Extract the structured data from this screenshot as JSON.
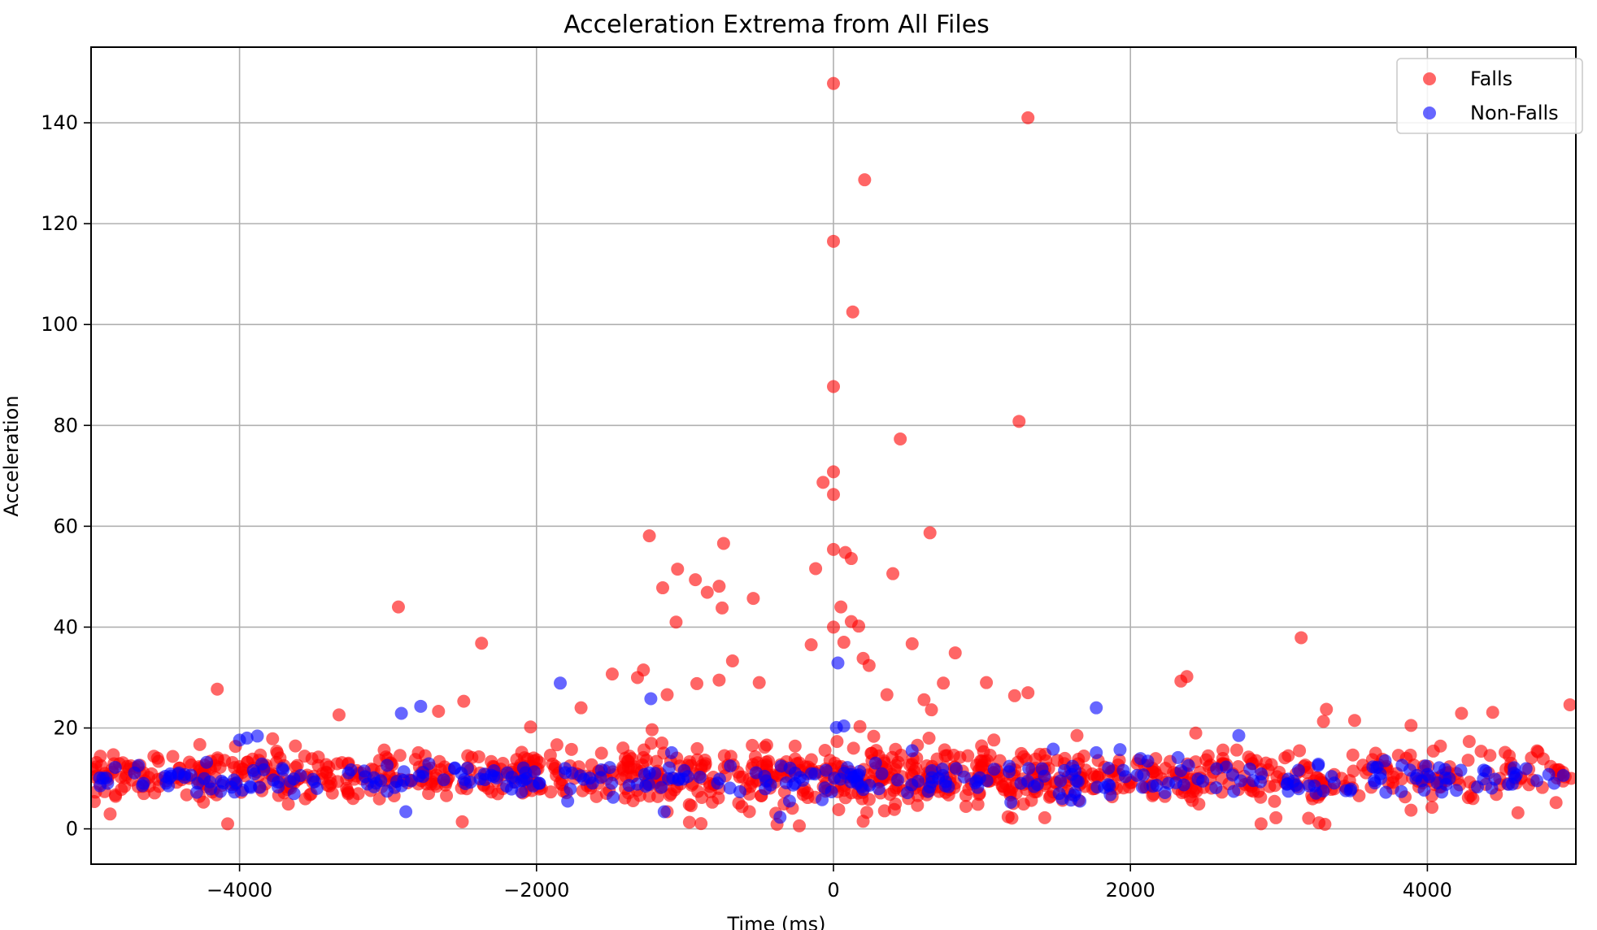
{
  "chart_data": {
    "type": "scatter",
    "title": "Acceleration Extrema from All Files",
    "xlabel": "Time (ms)",
    "ylabel": "Acceleration",
    "xlim": [
      -5000,
      5000
    ],
    "ylim": [
      -7,
      155
    ],
    "xticks": [
      -4000,
      -2000,
      0,
      2000,
      4000
    ],
    "xtick_labels": [
      "−4000",
      "−2000",
      "0",
      "2000",
      "4000"
    ],
    "yticks": [
      0,
      20,
      40,
      60,
      80,
      100,
      120,
      140
    ],
    "ytick_labels": [
      "0",
      "20",
      "40",
      "60",
      "80",
      "100",
      "120",
      "140"
    ],
    "grid": true,
    "legend_position": "top-right",
    "series": [
      {
        "name": "Falls",
        "color": "#ff0000",
        "opacity": 0.6,
        "outliers": [
          {
            "x": 0,
            "y": 147.8
          },
          {
            "x": 1310,
            "y": 141.0
          },
          {
            "x": 210,
            "y": 128.7
          },
          {
            "x": 0,
            "y": 116.5
          },
          {
            "x": 130,
            "y": 102.5
          },
          {
            "x": 0,
            "y": 87.7
          },
          {
            "x": 1250,
            "y": 80.8
          },
          {
            "x": 450,
            "y": 77.3
          },
          {
            "x": 0,
            "y": 70.8
          },
          {
            "x": -70,
            "y": 68.7
          },
          {
            "x": 0,
            "y": 66.3
          },
          {
            "x": 650,
            "y": 58.7
          },
          {
            "x": -1240,
            "y": 58.1
          },
          {
            "x": -740,
            "y": 56.6
          },
          {
            "x": 0,
            "y": 55.4
          },
          {
            "x": 80,
            "y": 54.8
          },
          {
            "x": 120,
            "y": 53.6
          },
          {
            "x": -1050,
            "y": 51.5
          },
          {
            "x": -120,
            "y": 51.6
          },
          {
            "x": 400,
            "y": 50.6
          },
          {
            "x": -930,
            "y": 49.4
          },
          {
            "x": -770,
            "y": 48.1
          },
          {
            "x": -1150,
            "y": 47.8
          },
          {
            "x": -850,
            "y": 46.9
          },
          {
            "x": -540,
            "y": 45.7
          },
          {
            "x": -2930,
            "y": 44.0
          },
          {
            "x": 50,
            "y": 44.0
          },
          {
            "x": -750,
            "y": 43.8
          },
          {
            "x": 120,
            "y": 41.1
          },
          {
            "x": -1060,
            "y": 41.0
          },
          {
            "x": 170,
            "y": 40.2
          },
          {
            "x": 0,
            "y": 40.0
          },
          {
            "x": 3150,
            "y": 37.9
          },
          {
            "x": -2370,
            "y": 36.8
          },
          {
            "x": 530,
            "y": 36.7
          },
          {
            "x": -150,
            "y": 36.5
          },
          {
            "x": 70,
            "y": 37.0
          },
          {
            "x": 820,
            "y": 34.9
          },
          {
            "x": 200,
            "y": 33.8
          },
          {
            "x": -680,
            "y": 33.3
          },
          {
            "x": -1280,
            "y": 31.5
          },
          {
            "x": 240,
            "y": 32.4
          },
          {
            "x": -1490,
            "y": 30.7
          },
          {
            "x": -1320,
            "y": 30.0
          },
          {
            "x": 2380,
            "y": 30.2
          },
          {
            "x": 2340,
            "y": 29.3
          },
          {
            "x": 1030,
            "y": 29.0
          },
          {
            "x": -500,
            "y": 29.0
          },
          {
            "x": -770,
            "y": 29.5
          },
          {
            "x": -920,
            "y": 28.8
          },
          {
            "x": 740,
            "y": 28.9
          },
          {
            "x": 1310,
            "y": 27.0
          },
          {
            "x": -4150,
            "y": 27.7
          },
          {
            "x": 1220,
            "y": 26.4
          },
          {
            "x": 360,
            "y": 26.6
          },
          {
            "x": -1120,
            "y": 26.6
          },
          {
            "x": 610,
            "y": 25.6
          },
          {
            "x": -2490,
            "y": 25.3
          },
          {
            "x": 4960,
            "y": 24.6
          },
          {
            "x": -1700,
            "y": 24.0
          },
          {
            "x": 3320,
            "y": 23.7
          },
          {
            "x": 660,
            "y": 23.6
          },
          {
            "x": -2660,
            "y": 23.3
          },
          {
            "x": -3330,
            "y": 22.6
          },
          {
            "x": 4230,
            "y": 22.9
          },
          {
            "x": 4440,
            "y": 23.1
          },
          {
            "x": 3300,
            "y": 21.3
          },
          {
            "x": 3510,
            "y": 21.5
          },
          {
            "x": -2040,
            "y": 20.2
          },
          {
            "x": 3890,
            "y": 20.5
          },
          {
            "x": 1640,
            "y": 18.5
          },
          {
            "x": 2440,
            "y": 19.0
          },
          {
            "x": -4080,
            "y": 1.0
          },
          {
            "x": -2500,
            "y": 1.4
          },
          {
            "x": -970,
            "y": 1.3
          },
          {
            "x": -380,
            "y": 0.9
          },
          {
            "x": -230,
            "y": 0.6
          },
          {
            "x": 200,
            "y": 1.5
          },
          {
            "x": 2880,
            "y": 1.0
          },
          {
            "x": 3270,
            "y": 1.2
          },
          {
            "x": 3310,
            "y": 0.9
          },
          {
            "x": 2980,
            "y": 2.2
          },
          {
            "x": 3200,
            "y": 2.1
          },
          {
            "x": 3890,
            "y": 3.7
          },
          {
            "x": 4610,
            "y": 3.2
          },
          {
            "x": -1120,
            "y": 3.4
          }
        ],
        "band": [
          {
            "x_range": [
              -5000,
              5000
            ],
            "y_center": 10.5,
            "y_spread": 4.5,
            "count": 900
          },
          {
            "x_range": [
              -1500,
              1500
            ],
            "y_center": 10.0,
            "y_spread": 8.0,
            "count": 140
          }
        ]
      },
      {
        "name": "Non-Falls",
        "color": "#0000ff",
        "opacity": 0.6,
        "outliers": [
          {
            "x": 30,
            "y": 32.9
          },
          {
            "x": -1840,
            "y": 28.9
          },
          {
            "x": -1230,
            "y": 25.8
          },
          {
            "x": -2780,
            "y": 24.3
          },
          {
            "x": 1770,
            "y": 24.0
          },
          {
            "x": -2910,
            "y": 22.9
          },
          {
            "x": 20,
            "y": 20.1
          },
          {
            "x": 70,
            "y": 20.4
          },
          {
            "x": 2730,
            "y": 18.5
          },
          {
            "x": -3880,
            "y": 18.4
          },
          {
            "x": -3950,
            "y": 18.0
          },
          {
            "x": -4000,
            "y": 17.6
          },
          {
            "x": 1480,
            "y": 15.8
          },
          {
            "x": 1930,
            "y": 15.7
          },
          {
            "x": 1770,
            "y": 15.1
          },
          {
            "x": -1090,
            "y": 15.1
          },
          {
            "x": 530,
            "y": 15.5
          },
          {
            "x": -2880,
            "y": 3.4
          },
          {
            "x": -1140,
            "y": 3.4
          },
          {
            "x": -360,
            "y": 2.3
          },
          {
            "x": -1790,
            "y": 5.5
          },
          {
            "x": 1660,
            "y": 5.5
          },
          {
            "x": 1600,
            "y": 5.7
          },
          {
            "x": 1540,
            "y": 6.0
          }
        ],
        "band": [
          {
            "x_range": [
              -4950,
              4950
            ],
            "y_center": 9.8,
            "y_spread": 2.8,
            "count": 320
          }
        ]
      }
    ]
  }
}
